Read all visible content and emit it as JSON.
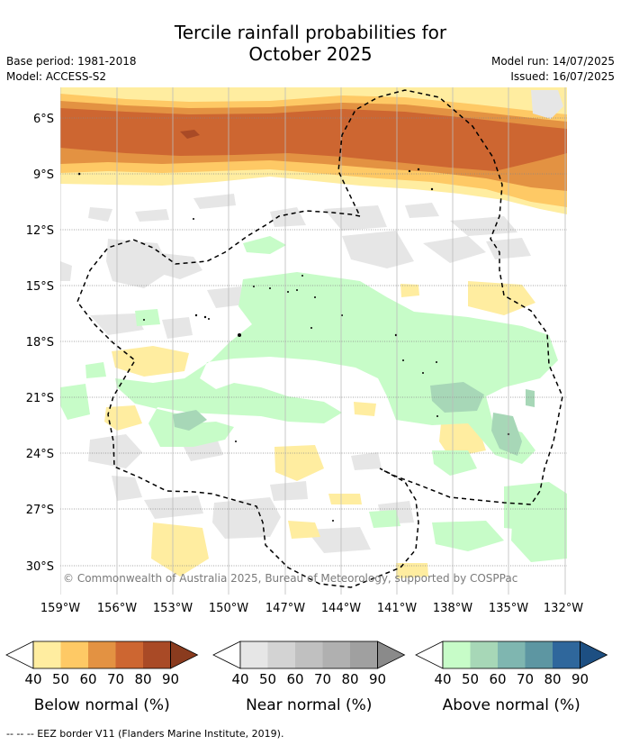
{
  "title": {
    "line1": "Tercile rainfall probabilities for",
    "line2": "October 2025"
  },
  "meta": {
    "base_period": "Base period: 1981-2018",
    "model": "Model: ACCESS-S2",
    "model_run": "Model run: 14/07/2025",
    "issued": "Issued: 16/07/2025"
  },
  "map": {
    "lon_labels": [
      "159°W",
      "156°W",
      "153°W",
      "150°W",
      "147°W",
      "144°W",
      "141°W",
      "138°W",
      "135°W",
      "132°W"
    ],
    "lat_labels": [
      "6°S",
      "9°S",
      "12°S",
      "15°S",
      "18°S",
      "21°S",
      "24°S",
      "27°S",
      "30°S"
    ],
    "copyright": "© Commonwealth of Australia 2025, Bureau of Meteorology, supported by COSPPac"
  },
  "legend": {
    "tick_labels": [
      "40",
      "50",
      "60",
      "70",
      "80",
      "90"
    ],
    "below": {
      "title": "Below normal (%)",
      "colors": [
        "#ffffff",
        "#ffeda0",
        "#fec965",
        "#e39242",
        "#cd6631",
        "#a94a26",
        "#8a3b1e"
      ]
    },
    "near": {
      "title": "Near normal (%)",
      "colors": [
        "#ffffff",
        "#e6e6e6",
        "#d3d3d3",
        "#c0c0c0",
        "#b0b0b0",
        "#a0a0a0",
        "#8a8a8a"
      ]
    },
    "above": {
      "title": "Above normal (%)",
      "colors": [
        "#ffffff",
        "#c7fcc8",
        "#a7d7b7",
        "#7fb6b0",
        "#5d96a2",
        "#2f679c",
        "#1d4f82"
      ]
    }
  },
  "footnote": "--  --  -- EEZ border V11 (Flanders Marine Institute, 2019)."
}
